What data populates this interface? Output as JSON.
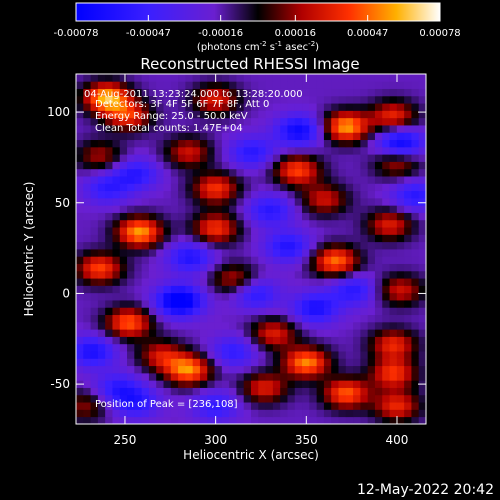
{
  "colorbar": {
    "ticks": [
      -0.00078,
      -0.00047,
      -0.00016,
      0.00016,
      0.00047,
      0.00078
    ],
    "tick_labels": [
      "-0.00078",
      "-0.00047",
      "-0.00016",
      "0.00016",
      "0.00047",
      "0.00078"
    ],
    "units_main": "(photons cm",
    "units_sup1": "-2",
    "units_mid1": " s",
    "units_sup2": "-1",
    "units_mid2": " asec",
    "units_sup3": "-2",
    "units_end": ")"
  },
  "annotations": {
    "time_range": "04-Aug-2011 13:23:24.000 to 13:28:20.000",
    "detectors": "Detectors: 3F 4F 5F 6F 7F 8F, Att 0",
    "energy": "Energy Range: 25.0 - 50.0 keV",
    "clean": "Clean     Total counts: 1.47E+04",
    "peak": "Position of Peak = [236,108]"
  },
  "footer": {
    "timestamp": "12-May-2022 20:42"
  },
  "chart_data": {
    "type": "heatmap",
    "title": "Reconstructed RHESSI Image",
    "xlabel": "Heliocentric X (arcsec)",
    "ylabel": "Heliocentric Y (arcsec)",
    "xlim": [
      223,
      416
    ],
    "ylim": [
      -72,
      121
    ],
    "xticks": [
      250,
      300,
      350,
      400
    ],
    "yticks": [
      -50,
      0,
      50,
      100
    ],
    "zlim": [
      -0.00078,
      0.00078
    ],
    "colormap": "blue-purple-black-red-yellow-white",
    "peak_position": [
      236,
      108
    ],
    "blobs": [
      {
        "x": 240,
        "y": 108,
        "v": 1.0
      },
      {
        "x": 252,
        "y": 98,
        "v": 0.65
      },
      {
        "x": 300,
        "y": 107,
        "v": 0.6
      },
      {
        "x": 372,
        "y": 92,
        "v": 0.95
      },
      {
        "x": 398,
        "y": 98,
        "v": 0.65
      },
      {
        "x": 236,
        "y": 76,
        "v": 0.45
      },
      {
        "x": 285,
        "y": 78,
        "v": 0.55
      },
      {
        "x": 345,
        "y": 68,
        "v": 0.75
      },
      {
        "x": 400,
        "y": 72,
        "v": 0.5
      },
      {
        "x": 300,
        "y": 58,
        "v": 0.7
      },
      {
        "x": 360,
        "y": 52,
        "v": 0.55
      },
      {
        "x": 258,
        "y": 34,
        "v": 0.95
      },
      {
        "x": 300,
        "y": 36,
        "v": 0.7
      },
      {
        "x": 396,
        "y": 38,
        "v": 0.6
      },
      {
        "x": 366,
        "y": 18,
        "v": 0.85
      },
      {
        "x": 236,
        "y": 14,
        "v": 0.75
      },
      {
        "x": 310,
        "y": 8,
        "v": 0.5
      },
      {
        "x": 402,
        "y": 2,
        "v": 0.55
      },
      {
        "x": 252,
        "y": -16,
        "v": 0.8
      },
      {
        "x": 332,
        "y": -22,
        "v": 0.6
      },
      {
        "x": 398,
        "y": -28,
        "v": 0.65
      },
      {
        "x": 270,
        "y": -34,
        "v": 0.55
      },
      {
        "x": 285,
        "y": -42,
        "v": 0.9
      },
      {
        "x": 350,
        "y": -38,
        "v": 0.9
      },
      {
        "x": 398,
        "y": -44,
        "v": 0.7
      },
      {
        "x": 327,
        "y": -52,
        "v": 0.6
      },
      {
        "x": 372,
        "y": -55,
        "v": 0.8
      },
      {
        "x": 400,
        "y": -62,
        "v": 0.65
      },
      {
        "x": 228,
        "y": -62,
        "v": 0.4
      },
      {
        "x": 346,
        "y": 90,
        "v": -0.7
      },
      {
        "x": 320,
        "y": 78,
        "v": -0.5
      },
      {
        "x": 402,
        "y": 83,
        "v": -0.75
      },
      {
        "x": 256,
        "y": 66,
        "v": -0.5
      },
      {
        "x": 240,
        "y": 58,
        "v": -0.45
      },
      {
        "x": 330,
        "y": 46,
        "v": -0.5
      },
      {
        "x": 410,
        "y": 54,
        "v": -0.5
      },
      {
        "x": 286,
        "y": 20,
        "v": -0.55
      },
      {
        "x": 340,
        "y": 26,
        "v": -0.55
      },
      {
        "x": 322,
        "y": 0,
        "v": -0.5
      },
      {
        "x": 280,
        "y": -4,
        "v": -0.95
      },
      {
        "x": 355,
        "y": -8,
        "v": -0.6
      },
      {
        "x": 376,
        "y": 2,
        "v": -0.5
      },
      {
        "x": 232,
        "y": -32,
        "v": -0.6
      },
      {
        "x": 310,
        "y": -32,
        "v": -0.45
      },
      {
        "x": 246,
        "y": -52,
        "v": -0.45
      },
      {
        "x": 256,
        "y": -60,
        "v": -0.5
      },
      {
        "x": 300,
        "y": -62,
        "v": -0.45
      }
    ]
  }
}
